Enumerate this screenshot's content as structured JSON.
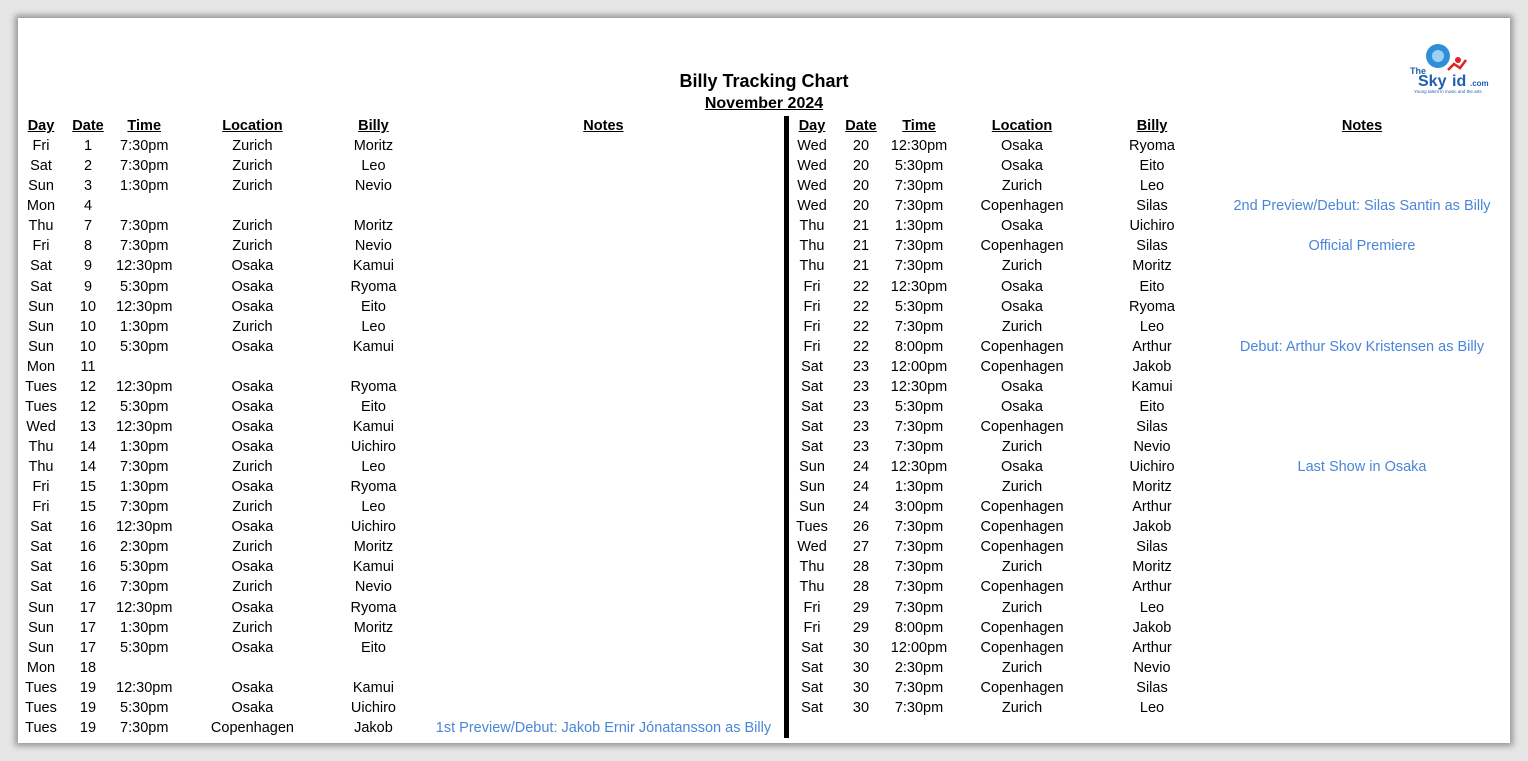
{
  "header": {
    "title": "Billy Tracking Chart",
    "subtitle": "November 2024"
  },
  "logo": {
    "text": "TheSkyKid.com",
    "tagline": "Young talent in music and the arts"
  },
  "columns": [
    "Day",
    "Date",
    "Time",
    "Location",
    "Billy",
    "Notes"
  ],
  "colors": {
    "note": "#4a86d8",
    "divider": "#000000"
  },
  "left_rows": [
    [
      "Fri",
      "1",
      "7:30pm",
      "Zurich",
      "Moritz",
      ""
    ],
    [
      "Sat",
      "2",
      "7:30pm",
      "Zurich",
      "Leo",
      ""
    ],
    [
      "Sun",
      "3",
      "1:30pm",
      "Zurich",
      "Nevio",
      ""
    ],
    [
      "Mon",
      "4",
      "",
      "",
      "",
      ""
    ],
    [
      "Thu",
      "7",
      "7:30pm",
      "Zurich",
      "Moritz",
      ""
    ],
    [
      "Fri",
      "8",
      "7:30pm",
      "Zurich",
      "Nevio",
      ""
    ],
    [
      "Sat",
      "9",
      "12:30pm",
      "Osaka",
      "Kamui",
      ""
    ],
    [
      "Sat",
      "9",
      "5:30pm",
      "Osaka",
      "Ryoma",
      ""
    ],
    [
      "Sun",
      "10",
      "12:30pm",
      "Osaka",
      "Eito",
      ""
    ],
    [
      "Sun",
      "10",
      "1:30pm",
      "Zurich",
      "Leo",
      ""
    ],
    [
      "Sun",
      "10",
      "5:30pm",
      "Osaka",
      "Kamui",
      ""
    ],
    [
      "Mon",
      "11",
      "",
      "",
      "",
      ""
    ],
    [
      "Tues",
      "12",
      "12:30pm",
      "Osaka",
      "Ryoma",
      ""
    ],
    [
      "Tues",
      "12",
      "5:30pm",
      "Osaka",
      "Eito",
      ""
    ],
    [
      "Wed",
      "13",
      "12:30pm",
      "Osaka",
      "Kamui",
      ""
    ],
    [
      "Thu",
      "14",
      "1:30pm",
      "Osaka",
      "Uichiro",
      ""
    ],
    [
      "Thu",
      "14",
      "7:30pm",
      "Zurich",
      "Leo",
      ""
    ],
    [
      "Fri",
      "15",
      "1:30pm",
      "Osaka",
      "Ryoma",
      ""
    ],
    [
      "Fri",
      "15",
      "7:30pm",
      "Zurich",
      "Leo",
      ""
    ],
    [
      "Sat",
      "16",
      "12:30pm",
      "Osaka",
      "Uichiro",
      ""
    ],
    [
      "Sat",
      "16",
      "2:30pm",
      "Zurich",
      "Moritz",
      ""
    ],
    [
      "Sat",
      "16",
      "5:30pm",
      "Osaka",
      "Kamui",
      ""
    ],
    [
      "Sat",
      "16",
      "7:30pm",
      "Zurich",
      "Nevio",
      ""
    ],
    [
      "Sun",
      "17",
      "12:30pm",
      "Osaka",
      "Ryoma",
      ""
    ],
    [
      "Sun",
      "17",
      "1:30pm",
      "Zurich",
      "Moritz",
      ""
    ],
    [
      "Sun",
      "17",
      "5:30pm",
      "Osaka",
      "Eito",
      ""
    ],
    [
      "Mon",
      "18",
      "",
      "",
      "",
      ""
    ],
    [
      "Tues",
      "19",
      "12:30pm",
      "Osaka",
      "Kamui",
      ""
    ],
    [
      "Tues",
      "19",
      "5:30pm",
      "Osaka",
      "Uichiro",
      ""
    ],
    [
      "Tues",
      "19",
      "7:30pm",
      "Copenhagen",
      "Jakob",
      "1st Preview/Debut: Jakob Ernir Jónatansson as Billy"
    ]
  ],
  "right_rows": [
    [
      "Wed",
      "20",
      "12:30pm",
      "Osaka",
      "Ryoma",
      ""
    ],
    [
      "Wed",
      "20",
      "5:30pm",
      "Osaka",
      "Eito",
      ""
    ],
    [
      "Wed",
      "20",
      "7:30pm",
      "Zurich",
      "Leo",
      ""
    ],
    [
      "Wed",
      "20",
      "7:30pm",
      "Copenhagen",
      "Silas",
      "2nd Preview/Debut: Silas Santin as Billy"
    ],
    [
      "Thu",
      "21",
      "1:30pm",
      "Osaka",
      "Uichiro",
      ""
    ],
    [
      "Thu",
      "21",
      "7:30pm",
      "Copenhagen",
      "Silas",
      "Official Premiere"
    ],
    [
      "Thu",
      "21",
      "7:30pm",
      "Zurich",
      "Moritz",
      ""
    ],
    [
      "Fri",
      "22",
      "12:30pm",
      "Osaka",
      "Eito",
      ""
    ],
    [
      "Fri",
      "22",
      "5:30pm",
      "Osaka",
      "Ryoma",
      ""
    ],
    [
      "Fri",
      "22",
      "7:30pm",
      "Zurich",
      "Leo",
      ""
    ],
    [
      "Fri",
      "22",
      "8:00pm",
      "Copenhagen",
      "Arthur",
      "Debut: Arthur Skov Kristensen as Billy"
    ],
    [
      "Sat",
      "23",
      "12:00pm",
      "Copenhagen",
      "Jakob",
      ""
    ],
    [
      "Sat",
      "23",
      "12:30pm",
      "Osaka",
      "Kamui",
      ""
    ],
    [
      "Sat",
      "23",
      "5:30pm",
      "Osaka",
      "Eito",
      ""
    ],
    [
      "Sat",
      "23",
      "7:30pm",
      "Copenhagen",
      "Silas",
      ""
    ],
    [
      "Sat",
      "23",
      "7:30pm",
      "Zurich",
      "Nevio",
      ""
    ],
    [
      "Sun",
      "24",
      "12:30pm",
      "Osaka",
      "Uichiro",
      "Last Show in Osaka"
    ],
    [
      "Sun",
      "24",
      "1:30pm",
      "Zurich",
      "Moritz",
      ""
    ],
    [
      "Sun",
      "24",
      "3:00pm",
      "Copenhagen",
      "Arthur",
      ""
    ],
    [
      "Tues",
      "26",
      "7:30pm",
      "Copenhagen",
      "Jakob",
      ""
    ],
    [
      "Wed",
      "27",
      "7:30pm",
      "Copenhagen",
      "Silas",
      ""
    ],
    [
      "Thu",
      "28",
      "7:30pm",
      "Zurich",
      "Moritz",
      ""
    ],
    [
      "Thu",
      "28",
      "7:30pm",
      "Copenhagen",
      "Arthur",
      ""
    ],
    [
      "Fri",
      "29",
      "7:30pm",
      "Zurich",
      "Leo",
      ""
    ],
    [
      "Fri",
      "29",
      "8:00pm",
      "Copenhagen",
      "Jakob",
      ""
    ],
    [
      "Sat",
      "30",
      "12:00pm",
      "Copenhagen",
      "Arthur",
      ""
    ],
    [
      "Sat",
      "30",
      "2:30pm",
      "Zurich",
      "Nevio",
      ""
    ],
    [
      "Sat",
      "30",
      "7:30pm",
      "Copenhagen",
      "Silas",
      ""
    ],
    [
      "Sat",
      "30",
      "7:30pm",
      "Zurich",
      "Leo",
      ""
    ]
  ]
}
